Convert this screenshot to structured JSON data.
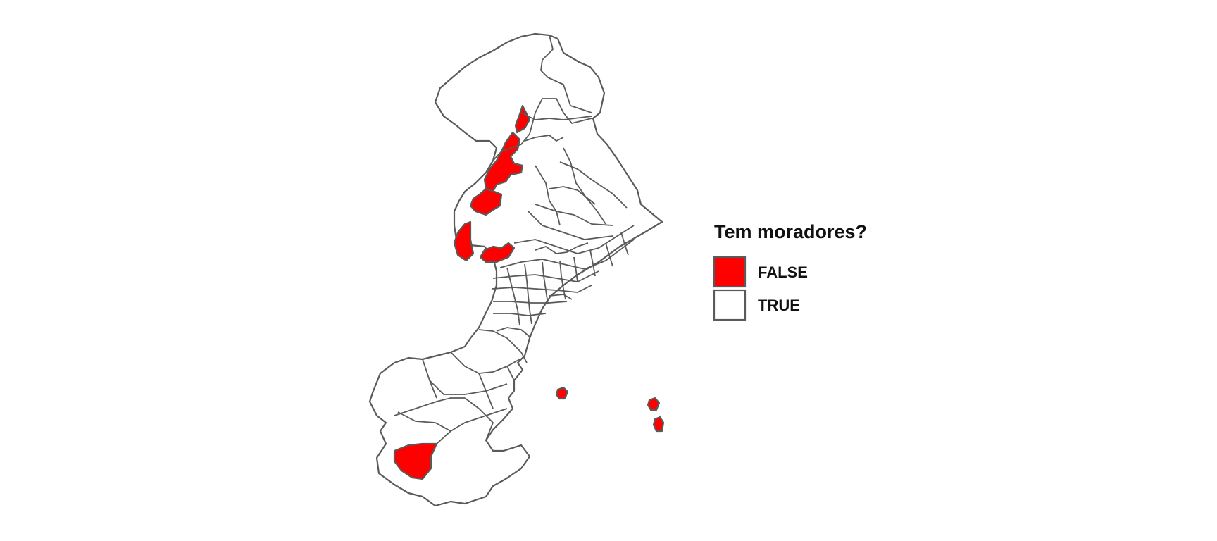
{
  "legend": {
    "title": "Tem moradores?",
    "items": [
      {
        "label": "FALSE",
        "color": "#ff0000"
      },
      {
        "label": "TRUE",
        "color": "#ffffff"
      }
    ]
  },
  "colors": {
    "border": "#5a5a5a",
    "false_fill": "#ff0000",
    "true_fill": "#ffffff"
  }
}
